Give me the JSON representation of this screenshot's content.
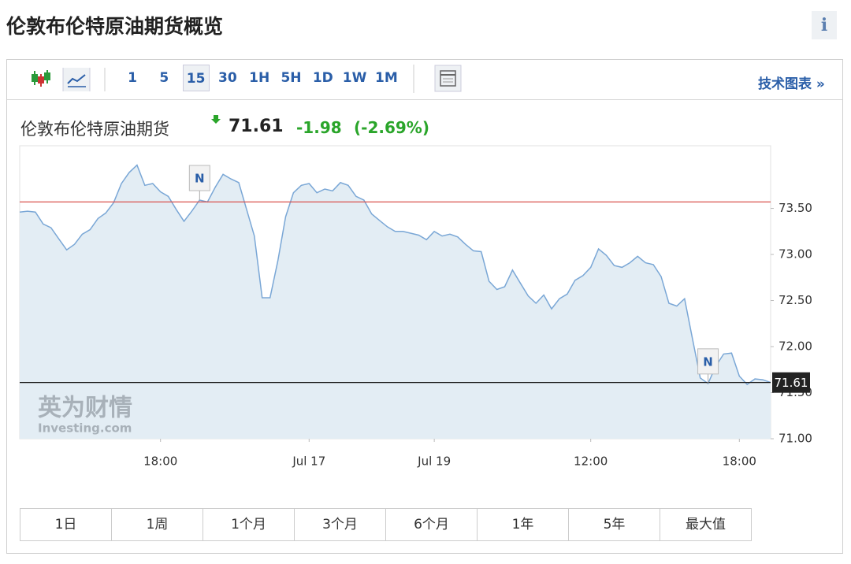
{
  "header": {
    "title": "伦敦布伦特原油期货概览",
    "info": "i"
  },
  "toolbar": {
    "intervals": [
      "1",
      "5",
      "15",
      "30",
      "1H",
      "5H",
      "1D",
      "1W",
      "1M"
    ],
    "active_interval": "15",
    "link": "技术图表 »"
  },
  "quote": {
    "name": "伦敦布伦特原油期货",
    "price": "71.61",
    "change": "-1.98",
    "change_pct": "(-2.69%)"
  },
  "watermark": {
    "brand": "英为财情",
    "site": "Investing.com"
  },
  "ranges": [
    "1日",
    "1周",
    "1个月",
    "3个月",
    "6个月",
    "1年",
    "5年",
    "最大值"
  ],
  "chart_data": {
    "type": "line",
    "color": "#7aa7d6",
    "fill": "#e3edf4",
    "categories": [
      null,
      null,
      null,
      null,
      null,
      null,
      null,
      null,
      null,
      null,
      null,
      null,
      null,
      null,
      null,
      null,
      null,
      null,
      "18:00",
      null,
      null,
      null,
      null,
      null,
      null,
      null,
      null,
      null,
      null,
      null,
      null,
      null,
      null,
      null,
      null,
      null,
      null,
      "Jul 17",
      null,
      null,
      null,
      null,
      null,
      null,
      null,
      null,
      null,
      null,
      null,
      null,
      null,
      null,
      null,
      "Jul 19",
      null,
      null,
      null,
      null,
      null,
      null,
      null,
      null,
      null,
      null,
      null,
      null,
      null,
      null,
      null,
      null,
      null,
      null,
      null,
      "12:00",
      null,
      null,
      null,
      null,
      null,
      null,
      null,
      null,
      null,
      null,
      null,
      null,
      null,
      null,
      null,
      null,
      null,
      null,
      "18:00",
      null,
      null,
      null,
      null
    ],
    "values": [
      73.46,
      73.47,
      73.46,
      73.33,
      73.29,
      73.17,
      73.05,
      73.11,
      73.22,
      73.27,
      73.39,
      73.45,
      73.56,
      73.77,
      73.89,
      73.97,
      73.75,
      73.77,
      73.68,
      73.63,
      73.49,
      73.36,
      73.47,
      73.59,
      73.57,
      73.73,
      73.87,
      73.82,
      73.78,
      73.49,
      73.2,
      72.53,
      72.53,
      72.93,
      73.41,
      73.67,
      73.75,
      73.77,
      73.67,
      73.71,
      73.69,
      73.78,
      73.75,
      73.63,
      73.59,
      73.44,
      73.37,
      73.3,
      73.25,
      73.25,
      73.23,
      73.21,
      73.16,
      73.25,
      73.2,
      73.22,
      73.19,
      73.11,
      73.04,
      73.03,
      72.71,
      72.62,
      72.65,
      72.83,
      72.69,
      72.55,
      72.47,
      72.56,
      72.41,
      72.52,
      72.57,
      72.72,
      72.77,
      72.86,
      73.06,
      72.99,
      72.88,
      72.86,
      72.91,
      72.98,
      72.91,
      72.89,
      72.76,
      72.47,
      72.44,
      72.52,
      72.09,
      71.66,
      71.6,
      71.79,
      71.92,
      71.93,
      71.68,
      71.59,
      71.65,
      71.64,
      71.61
    ],
    "ylim": [
      71.0,
      74.18
    ],
    "yticks": [
      {
        "value": 71,
        "label": "71.00"
      },
      {
        "value": 71.5,
        "label": "71.50"
      },
      {
        "value": 72,
        "label": "72.00"
      },
      {
        "value": 72.5,
        "label": "72.50"
      },
      {
        "value": 73,
        "label": "73.00"
      },
      {
        "value": 73.5,
        "label": "73.50"
      }
    ],
    "grid": false,
    "reference_line": {
      "value": 73.57,
      "color": "#d9534f"
    },
    "last_value": 71.61,
    "news_markers": [
      {
        "index": 23,
        "label": "N"
      },
      {
        "index": 88,
        "label": "N"
      }
    ]
  }
}
